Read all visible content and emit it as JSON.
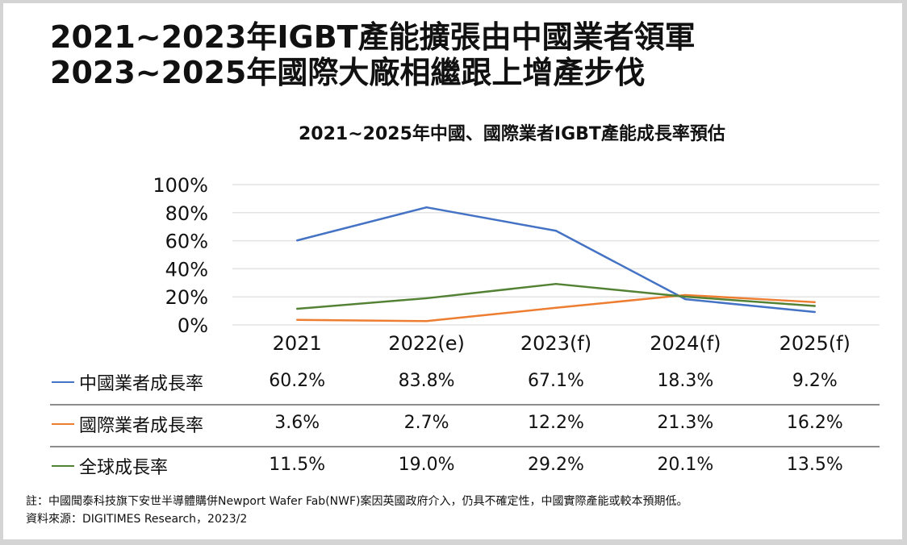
{
  "headline": {
    "line1": "2021~2023年IGBT產能擴張由中國業者領軍",
    "line2": "2023~2025年國際大廠相繼跟上增產步伐"
  },
  "chart_data": {
    "type": "line",
    "title": "2021~2025年中國、國際業者IGBT產能成長率預估",
    "xlabel": "",
    "ylabel": "",
    "categories": [
      "2021",
      "2022(e)",
      "2023(f)",
      "2024(f)",
      "2025(f)"
    ],
    "ylim": [
      0,
      100
    ],
    "yticks": [
      "100%",
      "80%",
      "60%",
      "40%",
      "20%",
      "0%"
    ],
    "ytick_values": [
      100,
      80,
      60,
      40,
      20,
      0
    ],
    "grid": true,
    "legend_placement": "bottom (data table)",
    "series": [
      {
        "name": "中國業者成長率",
        "color": "#4472c4",
        "values": [
          60.2,
          83.8,
          67.1,
          18.3,
          9.2
        ],
        "labels": [
          "60.2%",
          "83.8%",
          "67.1%",
          "18.3%",
          "9.2%"
        ]
      },
      {
        "name": "國際業者成長率",
        "color": "#ed7d31",
        "values": [
          3.6,
          2.7,
          12.2,
          21.3,
          16.2
        ],
        "labels": [
          "3.6%",
          "2.7%",
          "12.2%",
          "21.3%",
          "16.2%"
        ]
      },
      {
        "name": "全球成長率",
        "color": "#548235",
        "values": [
          11.5,
          19.0,
          29.2,
          20.1,
          13.5
        ],
        "labels": [
          "11.5%",
          "19.0%",
          "29.2%",
          "20.1%",
          "13.5%"
        ]
      }
    ]
  },
  "footer": {
    "note": "註：中國聞泰科技旗下安世半導體購併Newport Wafer Fab(NWF)案因英國政府介入，仍具不確定性，中國實際產能或較本預期低。",
    "source": "資料來源：DIGITIMES Research，2023/2"
  }
}
